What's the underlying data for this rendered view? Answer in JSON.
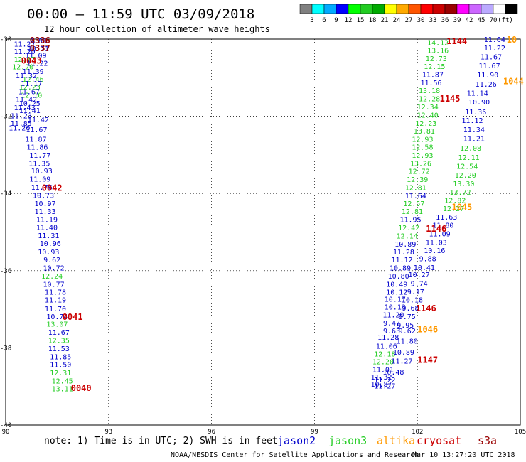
{
  "header": {
    "title": "00:00 – 11:59 UTC 03/09/2018",
    "subtitle": "12 hour collection of altimeter wave heights"
  },
  "colorscale": {
    "colors": [
      "#808080",
      "#00ffff",
      "#00aaff",
      "#0000ff",
      "#00ff00",
      "#22cc22",
      "#00aa00",
      "#ffff00",
      "#ffaa00",
      "#ff5500",
      "#ff0000",
      "#cc0000",
      "#990000",
      "#ff00ff",
      "#cc66ff",
      "#bbaaff",
      "#ffffff",
      "#000000"
    ],
    "labels": [
      "3",
      "6",
      "9",
      "12",
      "15",
      "18",
      "21",
      "24",
      "27",
      "30",
      "33",
      "36",
      "39",
      "42",
      "45",
      "70",
      "(ft)"
    ]
  },
  "footer": {
    "note": "note: 1) Time is in UTC; 2) SWH is in feet",
    "credit": "NOAA/NESDIS Center for Satellite Applications and Research",
    "timestamp": "Mar 10 13:27:20 UTC 2018",
    "satellites": [
      {
        "name": "jason2",
        "color": "#0000cc"
      },
      {
        "name": "jason3",
        "color": "#22cc22"
      },
      {
        "name": "altika",
        "color": "#ff9900"
      },
      {
        "name": "cryosat",
        "color": "#cc0000"
      },
      {
        "name": "s3a",
        "color": "#990000"
      }
    ]
  },
  "chart_data": {
    "type": "scatter",
    "title": "00:00 – 11:59 UTC 03/09/2018",
    "subtitle": "12 hour collection of altimeter wave heights",
    "xlim": [
      90,
      105
    ],
    "ylim": [
      -40,
      -30
    ],
    "xticks": [
      90,
      93,
      96,
      99,
      102,
      105
    ],
    "yticks": [
      -30,
      -32,
      -34,
      -36,
      -38,
      -40
    ],
    "grid": true,
    "colors": {
      "jason2": "#0000cc",
      "jason3": "#22cc22",
      "altika": "#ff9900",
      "cryosat": "#cc0000",
      "s3a": "#990000"
    },
    "points": [
      {
        "x": 90.95,
        "y": -30.04,
        "label": "9.86",
        "sat": "jason2"
      },
      {
        "x": 90.55,
        "y": -30.12,
        "label": "11.27",
        "sat": "jason2"
      },
      {
        "x": 90.95,
        "y": -30.24,
        "label": "10.71",
        "sat": "jason2"
      },
      {
        "x": 90.55,
        "y": -30.31,
        "label": "11.20",
        "sat": "jason2"
      },
      {
        "x": 90.88,
        "y": -30.41,
        "label": "11.09",
        "sat": "jason2"
      },
      {
        "x": 90.55,
        "y": -30.52,
        "label": "12.17",
        "sat": "jason3"
      },
      {
        "x": 90.92,
        "y": -30.62,
        "label": "11.22",
        "sat": "jason2"
      },
      {
        "x": 90.5,
        "y": -30.71,
        "label": "12.20",
        "sat": "jason3"
      },
      {
        "x": 90.8,
        "y": -30.83,
        "label": "11.39",
        "sat": "jason2"
      },
      {
        "x": 90.6,
        "y": -30.94,
        "label": "11.32",
        "sat": "jason2"
      },
      {
        "x": 90.8,
        "y": -31.03,
        "label": "12.46",
        "sat": "jason3"
      },
      {
        "x": 90.75,
        "y": -31.14,
        "label": "11.17",
        "sat": "jason2"
      },
      {
        "x": 90.7,
        "y": -31.23,
        "label": "12.23",
        "sat": "jason3"
      },
      {
        "x": 90.68,
        "y": -31.35,
        "label": "11.67",
        "sat": "jason2"
      },
      {
        "x": 90.75,
        "y": -31.45,
        "label": "12.10",
        "sat": "jason3"
      },
      {
        "x": 90.6,
        "y": -31.56,
        "label": "11.42",
        "sat": "jason2"
      },
      {
        "x": 90.7,
        "y": -31.66,
        "label": "10.25",
        "sat": "jason2"
      },
      {
        "x": 90.55,
        "y": -31.77,
        "label": "11.43",
        "sat": "jason2"
      },
      {
        "x": 90.7,
        "y": -31.84,
        "label": "11.41",
        "sat": "jason2"
      },
      {
        "x": 90.45,
        "y": -31.98,
        "label": "11.23",
        "sat": "jason2"
      },
      {
        "x": 90.95,
        "y": -32.08,
        "label": "11.42",
        "sat": "jason2"
      },
      {
        "x": 90.45,
        "y": -32.17,
        "label": "11.85",
        "sat": "jason2"
      },
      {
        "x": 90.4,
        "y": -32.29,
        "label": "11.20",
        "sat": "jason2"
      },
      {
        "x": 90.9,
        "y": -32.34,
        "label": "11.67",
        "sat": "jason2"
      },
      {
        "x": 90.88,
        "y": -32.59,
        "label": "11.87",
        "sat": "jason2"
      },
      {
        "x": 90.92,
        "y": -32.79,
        "label": "11.86",
        "sat": "jason2"
      },
      {
        "x": 91.0,
        "y": -33.0,
        "label": "11.77",
        "sat": "jason2"
      },
      {
        "x": 90.98,
        "y": -33.21,
        "label": "11.35",
        "sat": "jason2"
      },
      {
        "x": 91.05,
        "y": -33.41,
        "label": "10.93",
        "sat": "jason2"
      },
      {
        "x": 91.0,
        "y": -33.62,
        "label": "11.09",
        "sat": "jason2"
      },
      {
        "x": 91.05,
        "y": -33.83,
        "label": "11.76",
        "sat": "jason2"
      },
      {
        "x": 91.1,
        "y": -34.04,
        "label": "10.73",
        "sat": "jason2"
      },
      {
        "x": 91.15,
        "y": -34.25,
        "label": "10.97",
        "sat": "jason2"
      },
      {
        "x": 91.15,
        "y": -34.46,
        "label": "11.33",
        "sat": "jason2"
      },
      {
        "x": 91.2,
        "y": -34.67,
        "label": "11.19",
        "sat": "jason2"
      },
      {
        "x": 91.2,
        "y": -34.87,
        "label": "11.40",
        "sat": "jason2"
      },
      {
        "x": 91.25,
        "y": -35.08,
        "label": "11.31",
        "sat": "jason2"
      },
      {
        "x": 91.3,
        "y": -35.29,
        "label": "10.96",
        "sat": "jason2"
      },
      {
        "x": 91.25,
        "y": -35.51,
        "label": "10.93",
        "sat": "jason2"
      },
      {
        "x": 91.35,
        "y": -35.71,
        "label": "9.62",
        "sat": "jason2"
      },
      {
        "x": 91.4,
        "y": -35.92,
        "label": "10.72",
        "sat": "jason2"
      },
      {
        "x": 91.35,
        "y": -36.13,
        "label": "12.24",
        "sat": "jason3"
      },
      {
        "x": 91.4,
        "y": -36.34,
        "label": "10.77",
        "sat": "jason2"
      },
      {
        "x": 91.45,
        "y": -36.55,
        "label": "11.78",
        "sat": "jason2"
      },
      {
        "x": 91.45,
        "y": -36.75,
        "label": "11.19",
        "sat": "jason2"
      },
      {
        "x": 91.45,
        "y": -36.98,
        "label": "11.70",
        "sat": "jason2"
      },
      {
        "x": 91.5,
        "y": -37.18,
        "label": "10.74",
        "sat": "jason2"
      },
      {
        "x": 91.5,
        "y": -37.38,
        "label": "13.07",
        "sat": "jason3"
      },
      {
        "x": 91.55,
        "y": -37.59,
        "label": "11.67",
        "sat": "jason2"
      },
      {
        "x": 91.55,
        "y": -37.8,
        "label": "12.35",
        "sat": "jason3"
      },
      {
        "x": 91.55,
        "y": -38.01,
        "label": "11.53",
        "sat": "jason2"
      },
      {
        "x": 91.6,
        "y": -38.22,
        "label": "11.85",
        "sat": "jason2"
      },
      {
        "x": 91.6,
        "y": -38.43,
        "label": "11.50",
        "sat": "jason2"
      },
      {
        "x": 91.6,
        "y": -38.64,
        "label": "12.31",
        "sat": "jason3"
      },
      {
        "x": 91.65,
        "y": -38.85,
        "label": "12.45",
        "sat": "jason3"
      },
      {
        "x": 91.65,
        "y": -39.05,
        "label": "13.11",
        "sat": "jason3"
      },
      {
        "x": 102.6,
        "y": -30.08,
        "label": "14.12",
        "sat": "jason3"
      },
      {
        "x": 102.6,
        "y": -30.29,
        "label": "13.16",
        "sat": "jason3"
      },
      {
        "x": 102.55,
        "y": -30.5,
        "label": "12.73",
        "sat": "jason3"
      },
      {
        "x": 102.5,
        "y": -30.7,
        "label": "12.15",
        "sat": "jason3"
      },
      {
        "x": 102.45,
        "y": -30.91,
        "label": "11.87",
        "sat": "jason2"
      },
      {
        "x": 102.4,
        "y": -31.12,
        "label": "11.56",
        "sat": "jason2"
      },
      {
        "x": 102.35,
        "y": -31.33,
        "label": "13.18",
        "sat": "jason3"
      },
      {
        "x": 102.35,
        "y": -31.54,
        "label": "12.28",
        "sat": "jason3"
      },
      {
        "x": 102.3,
        "y": -31.75,
        "label": "12.34",
        "sat": "jason3"
      },
      {
        "x": 102.3,
        "y": -31.96,
        "label": "12.40",
        "sat": "jason3"
      },
      {
        "x": 102.25,
        "y": -32.17,
        "label": "12.23",
        "sat": "jason3"
      },
      {
        "x": 102.2,
        "y": -32.38,
        "label": "13.81",
        "sat": "jason3"
      },
      {
        "x": 102.15,
        "y": -32.59,
        "label": "12.93",
        "sat": "jason3"
      },
      {
        "x": 102.15,
        "y": -32.79,
        "label": "12.58",
        "sat": "jason3"
      },
      {
        "x": 102.15,
        "y": -33.0,
        "label": "12.93",
        "sat": "jason3"
      },
      {
        "x": 102.1,
        "y": -33.21,
        "label": "13.26",
        "sat": "jason3"
      },
      {
        "x": 102.05,
        "y": -33.42,
        "label": "12.72",
        "sat": "jason3"
      },
      {
        "x": 102.0,
        "y": -33.63,
        "label": "12.39",
        "sat": "jason3"
      },
      {
        "x": 101.95,
        "y": -33.84,
        "label": "12.81",
        "sat": "jason3"
      },
      {
        "x": 101.95,
        "y": -34.05,
        "label": "11.64",
        "sat": "jason2"
      },
      {
        "x": 101.9,
        "y": -34.25,
        "label": "12.57",
        "sat": "jason3"
      },
      {
        "x": 101.85,
        "y": -34.46,
        "label": "12.81",
        "sat": "jason3"
      },
      {
        "x": 101.8,
        "y": -34.67,
        "label": "11.95",
        "sat": "jason2"
      },
      {
        "x": 101.75,
        "y": -34.88,
        "label": "12.42",
        "sat": "jason3"
      },
      {
        "x": 101.7,
        "y": -35.09,
        "label": "12.14",
        "sat": "jason3"
      },
      {
        "x": 101.65,
        "y": -35.3,
        "label": "10.89",
        "sat": "jason2"
      },
      {
        "x": 101.6,
        "y": -35.51,
        "label": "11.28",
        "sat": "jason2"
      },
      {
        "x": 101.55,
        "y": -35.71,
        "label": "11.12",
        "sat": "jason2"
      },
      {
        "x": 101.5,
        "y": -35.92,
        "label": "10.89",
        "sat": "jason2"
      },
      {
        "x": 101.45,
        "y": -36.13,
        "label": "10.80",
        "sat": "jason2"
      },
      {
        "x": 101.4,
        "y": -36.34,
        "label": "10.49",
        "sat": "jason2"
      },
      {
        "x": 101.4,
        "y": -36.55,
        "label": "10.12",
        "sat": "jason2"
      },
      {
        "x": 101.35,
        "y": -36.73,
        "label": "10.17",
        "sat": "jason2"
      },
      {
        "x": 101.35,
        "y": -36.93,
        "label": "10.13",
        "sat": "jason2"
      },
      {
        "x": 101.3,
        "y": -37.14,
        "label": "11.20",
        "sat": "jason2"
      },
      {
        "x": 101.25,
        "y": -37.35,
        "label": "9.47",
        "sat": "jason2"
      },
      {
        "x": 101.25,
        "y": -37.55,
        "label": "9.63",
        "sat": "jason2"
      },
      {
        "x": 101.15,
        "y": -37.72,
        "label": "11.28",
        "sat": "jason2"
      },
      {
        "x": 101.1,
        "y": -37.95,
        "label": "11.06",
        "sat": "jason2"
      },
      {
        "x": 101.05,
        "y": -38.15,
        "label": "12.18",
        "sat": "jason3"
      },
      {
        "x": 101.0,
        "y": -38.35,
        "label": "12.20",
        "sat": "jason3"
      },
      {
        "x": 101.0,
        "y": -38.55,
        "label": "11.01",
        "sat": "jason2"
      },
      {
        "x": 100.95,
        "y": -38.75,
        "label": "11.32",
        "sat": "jason2"
      },
      {
        "x": 100.95,
        "y": -38.93,
        "label": "10.87",
        "sat": "jason2"
      },
      {
        "x": 101.05,
        "y": -38.98,
        "label": "11.27",
        "sat": "jason2"
      },
      {
        "x": 101.7,
        "y": -37.55,
        "label": "9.62",
        "sat": "jason2"
      },
      {
        "x": 101.7,
        "y": -37.82,
        "label": "11.80",
        "sat": "jason2"
      },
      {
        "x": 101.6,
        "y": -38.1,
        "label": "10.89",
        "sat": "jason2"
      },
      {
        "x": 101.55,
        "y": -38.33,
        "label": "11.27",
        "sat": "jason2"
      },
      {
        "x": 101.3,
        "y": -38.62,
        "label": "10.48",
        "sat": "jason2"
      },
      {
        "x": 101.05,
        "y": -38.82,
        "label": "11.22",
        "sat": "jason2"
      },
      {
        "x": 102.05,
        "y": -36.33,
        "label": "9.74",
        "sat": "jason2"
      },
      {
        "x": 101.95,
        "y": -36.54,
        "label": "9.17",
        "sat": "jason2"
      },
      {
        "x": 101.85,
        "y": -36.75,
        "label": "10.18",
        "sat": "jason2"
      },
      {
        "x": 101.8,
        "y": -36.96,
        "label": "9.68",
        "sat": "jason2"
      },
      {
        "x": 101.7,
        "y": -37.18,
        "label": "9.75",
        "sat": "jason2"
      },
      {
        "x": 101.65,
        "y": -37.4,
        "label": "9.95",
        "sat": "jason2"
      },
      {
        "x": 102.05,
        "y": -36.1,
        "label": "10.27",
        "sat": "jason2"
      },
      {
        "x": 102.2,
        "y": -35.91,
        "label": "10.41",
        "sat": "jason2"
      },
      {
        "x": 102.3,
        "y": -35.68,
        "label": "9.88",
        "sat": "jason2"
      },
      {
        "x": 102.5,
        "y": -35.47,
        "label": "10.16",
        "sat": "jason2"
      },
      {
        "x": 102.55,
        "y": -35.26,
        "label": "11.03",
        "sat": "jason2"
      },
      {
        "x": 102.65,
        "y": -35.04,
        "label": "11.09",
        "sat": "jason2"
      },
      {
        "x": 102.75,
        "y": -34.82,
        "label": "11.80",
        "sat": "jason2"
      },
      {
        "x": 102.85,
        "y": -34.6,
        "label": "11.63",
        "sat": "jason2"
      },
      {
        "x": 103.05,
        "y": -34.38,
        "label": "12.27",
        "sat": "jason3"
      },
      {
        "x": 103.1,
        "y": -34.17,
        "label": "12.82",
        "sat": "jason3"
      },
      {
        "x": 103.25,
        "y": -33.96,
        "label": "13.72",
        "sat": "jason3"
      },
      {
        "x": 103.35,
        "y": -33.74,
        "label": "13.30",
        "sat": "jason3"
      },
      {
        "x": 103.4,
        "y": -33.52,
        "label": "12.20",
        "sat": "jason3"
      },
      {
        "x": 103.45,
        "y": -33.29,
        "label": "12.54",
        "sat": "jason3"
      },
      {
        "x": 103.5,
        "y": -33.06,
        "label": "12.11",
        "sat": "jason3"
      },
      {
        "x": 103.55,
        "y": -32.82,
        "label": "12.08",
        "sat": "jason3"
      },
      {
        "x": 103.65,
        "y": -32.57,
        "label": "11.21",
        "sat": "jason2"
      },
      {
        "x": 103.65,
        "y": -32.34,
        "label": "11.34",
        "sat": "jason2"
      },
      {
        "x": 103.6,
        "y": -32.1,
        "label": "11.12",
        "sat": "jason2"
      },
      {
        "x": 103.7,
        "y": -31.88,
        "label": "11.36",
        "sat": "jason2"
      },
      {
        "x": 103.8,
        "y": -31.62,
        "label": "10.90",
        "sat": "jason2"
      },
      {
        "x": 103.75,
        "y": -31.39,
        "label": "11.14",
        "sat": "jason2"
      },
      {
        "x": 104.0,
        "y": -31.16,
        "label": "11.26",
        "sat": "jason2"
      },
      {
        "x": 104.05,
        "y": -30.92,
        "label": "11.90",
        "sat": "jason2"
      },
      {
        "x": 104.1,
        "y": -30.68,
        "label": "11.67",
        "sat": "jason2"
      },
      {
        "x": 104.15,
        "y": -30.45,
        "label": "11.67",
        "sat": "jason2"
      },
      {
        "x": 104.25,
        "y": -30.22,
        "label": "11.22",
        "sat": "jason2"
      },
      {
        "x": 104.25,
        "y": -30.0,
        "label": "11.64",
        "sat": "jason2"
      }
    ],
    "time_labels": [
      {
        "x": 91.0,
        "y": -30.02,
        "label": "0336",
        "sat": "s3a"
      },
      {
        "x": 91.0,
        "y": -30.22,
        "label": "0337",
        "sat": "s3a"
      },
      {
        "x": 90.75,
        "y": -30.54,
        "label": "0043",
        "sat": "cryosat"
      },
      {
        "x": 91.35,
        "y": -33.84,
        "label": "0042",
        "sat": "cryosat"
      },
      {
        "x": 91.95,
        "y": -37.18,
        "label": "0041",
        "sat": "cryosat"
      },
      {
        "x": 92.2,
        "y": -39.02,
        "label": "0040",
        "sat": "cryosat"
      },
      {
        "x": 103.15,
        "y": -30.04,
        "label": "1144",
        "sat": "cryosat"
      },
      {
        "x": 104.75,
        "y": -30.0,
        "label": "10",
        "sat": "altika"
      },
      {
        "x": 104.8,
        "y": -31.08,
        "label": "1044",
        "sat": "altika"
      },
      {
        "x": 102.95,
        "y": -31.53,
        "label": "1145",
        "sat": "cryosat"
      },
      {
        "x": 103.3,
        "y": -34.34,
        "label": "1045",
        "sat": "altika"
      },
      {
        "x": 102.55,
        "y": -34.9,
        "label": "1146",
        "sat": "cryosat"
      },
      {
        "x": 102.25,
        "y": -36.96,
        "label": "1146",
        "sat": "cryosat"
      },
      {
        "x": 102.3,
        "y": -37.5,
        "label": "1046",
        "sat": "altika"
      },
      {
        "x": 102.3,
        "y": -38.3,
        "label": "1147",
        "sat": "cryosat"
      }
    ]
  }
}
